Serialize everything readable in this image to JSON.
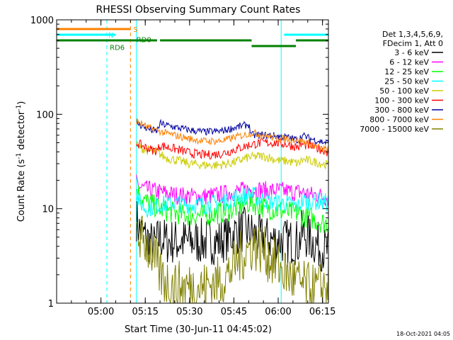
{
  "chart_data": {
    "type": "line",
    "title": "RHESSI Observing Summary Count Rates",
    "xlabel": "Start Time (30-Jun-11 04:45:02)",
    "ylabel_main": "Count Rate (s",
    "ylabel_sup1": "-1",
    "ylabel_mid": " detector",
    "ylabel_sup2": "-1",
    "ylabel_end": ")",
    "yscale": "log",
    "ylim": [
      1,
      1000
    ],
    "xlim_min": [
      0,
      92
    ],
    "y_ticks": [
      {
        "value": 1,
        "label": "1"
      },
      {
        "value": 10,
        "label": "10"
      },
      {
        "value": 100,
        "label": "100"
      },
      {
        "value": 1000,
        "label": "1000"
      }
    ],
    "x_ticks": [
      {
        "value": 15,
        "label": "05:00"
      },
      {
        "value": 30,
        "label": "05:15"
      },
      {
        "value": 45,
        "label": "05:30"
      },
      {
        "value": 60,
        "label": "05:45"
      },
      {
        "value": 75,
        "label": "06:00"
      },
      {
        "value": 90,
        "label": "06:15"
      }
    ],
    "legend_header": [
      "Det 1,3,4,5,6,9,",
      "FDecim 1, Att 0"
    ],
    "series": [
      {
        "name": "3 - 6 keV",
        "color": "#000000",
        "data": [
          [
            27,
            8
          ],
          [
            28,
            6
          ],
          [
            30,
            5
          ],
          [
            33,
            4
          ],
          [
            35,
            5
          ],
          [
            37,
            4.5
          ],
          [
            40,
            4.5
          ],
          [
            45,
            4.5
          ],
          [
            50,
            4.5
          ],
          [
            55,
            4.5
          ],
          [
            58,
            5
          ],
          [
            60,
            5.5
          ],
          [
            63,
            6
          ],
          [
            66,
            5.5
          ],
          [
            68,
            5
          ],
          [
            70,
            4.8
          ],
          [
            72,
            4.7
          ],
          [
            74,
            4.6
          ],
          [
            76,
            4.6
          ],
          [
            78,
            4.5
          ],
          [
            80,
            4.5
          ],
          [
            82,
            4.4
          ],
          [
            83,
            5.5
          ],
          [
            85,
            5
          ],
          [
            88,
            4.2
          ],
          [
            90,
            3.8
          ],
          [
            92,
            3.5
          ]
        ],
        "noise": 0.25
      },
      {
        "name": "6 - 12 keV",
        "color": "#ff00ff",
        "data": [
          [
            27,
            20
          ],
          [
            28,
            17
          ],
          [
            30,
            16
          ],
          [
            35,
            15
          ],
          [
            40,
            14
          ],
          [
            45,
            13.5
          ],
          [
            50,
            13.5
          ],
          [
            55,
            14
          ],
          [
            60,
            15
          ],
          [
            65,
            16
          ],
          [
            66,
            16
          ],
          [
            68,
            16
          ],
          [
            72,
            15.5
          ],
          [
            76,
            15.5
          ],
          [
            80,
            15
          ],
          [
            82,
            15
          ],
          [
            83,
            15
          ],
          [
            86,
            14
          ],
          [
            88,
            14
          ],
          [
            90,
            13.5
          ],
          [
            92,
            13
          ]
        ],
        "noise": 0.1
      },
      {
        "name": "12 - 25 keV",
        "color": "#00ff00",
        "data": [
          [
            27,
            17
          ],
          [
            28,
            14
          ],
          [
            30,
            12
          ],
          [
            35,
            10
          ],
          [
            40,
            9
          ],
          [
            45,
            8.5
          ],
          [
            50,
            8.5
          ],
          [
            55,
            9
          ],
          [
            60,
            10
          ],
          [
            65,
            11.5
          ],
          [
            66,
            11.5
          ],
          [
            68,
            11
          ],
          [
            72,
            10
          ],
          [
            76,
            9.5
          ],
          [
            80,
            9
          ],
          [
            82,
            9
          ],
          [
            83,
            8.5
          ],
          [
            86,
            8
          ],
          [
            88,
            7.5
          ],
          [
            90,
            7.2
          ],
          [
            92,
            7
          ]
        ],
        "noise": 0.12
      },
      {
        "name": "25 - 50 keV",
        "color": "#00ffff",
        "data": [
          [
            27,
            15
          ],
          [
            28,
            12
          ],
          [
            30,
            10
          ],
          [
            35,
            11
          ],
          [
            40,
            11.5
          ],
          [
            45,
            11
          ],
          [
            50,
            11
          ],
          [
            55,
            11.5
          ],
          [
            60,
            13
          ],
          [
            65,
            14
          ],
          [
            66,
            14
          ],
          [
            68,
            13
          ],
          [
            72,
            12
          ],
          [
            76,
            11.5
          ],
          [
            80,
            11
          ],
          [
            82,
            10.5
          ],
          [
            83,
            12
          ],
          [
            86,
            12
          ],
          [
            88,
            12
          ],
          [
            90,
            11.8
          ],
          [
            92,
            11.5
          ]
        ],
        "noise": 0.1
      },
      {
        "name": "50 - 100 keV",
        "color": "#cccc00",
        "data": [
          [
            27,
            48
          ],
          [
            28,
            45
          ],
          [
            30,
            42
          ],
          [
            34,
            40
          ],
          [
            36,
            36
          ],
          [
            38,
            34
          ],
          [
            40,
            33
          ],
          [
            45,
            30
          ],
          [
            50,
            29
          ],
          [
            55,
            29
          ],
          [
            58,
            30
          ],
          [
            60,
            31
          ],
          [
            65,
            35
          ],
          [
            66,
            35
          ],
          [
            68,
            36
          ],
          [
            70,
            36
          ],
          [
            72,
            35
          ],
          [
            74,
            33
          ],
          [
            76,
            32
          ],
          [
            78,
            32
          ],
          [
            80,
            31
          ],
          [
            82,
            30
          ],
          [
            83,
            33
          ],
          [
            86,
            32
          ],
          [
            88,
            31
          ],
          [
            90,
            30
          ],
          [
            92,
            29
          ]
        ],
        "noise": 0.05
      },
      {
        "name": "100 - 300 keV",
        "color": "#ff0000",
        "data": [
          [
            27,
            50
          ],
          [
            28,
            48
          ],
          [
            30,
            45
          ],
          [
            32,
            42
          ],
          [
            34,
            41
          ],
          [
            35,
            47
          ],
          [
            36,
            46
          ],
          [
            40,
            43
          ],
          [
            45,
            39
          ],
          [
            50,
            37
          ],
          [
            55,
            38
          ],
          [
            58,
            40
          ],
          [
            60,
            42
          ],
          [
            65,
            47
          ],
          [
            66,
            48
          ],
          [
            68,
            49
          ],
          [
            70,
            50
          ],
          [
            72,
            50
          ],
          [
            74,
            50
          ],
          [
            76,
            49
          ],
          [
            78,
            48
          ],
          [
            80,
            46
          ],
          [
            82,
            45
          ],
          [
            83,
            48
          ],
          [
            86,
            46
          ],
          [
            88,
            44
          ],
          [
            90,
            42
          ],
          [
            92,
            40
          ]
        ],
        "noise": 0.05
      },
      {
        "name": "300 - 800 keV",
        "color": "#0000a0",
        "data": [
          [
            27,
            82
          ],
          [
            28,
            78
          ],
          [
            30,
            72
          ],
          [
            32,
            68
          ],
          [
            34,
            66
          ],
          [
            35,
            80
          ],
          [
            36,
            78
          ],
          [
            40,
            73
          ],
          [
            45,
            68
          ],
          [
            50,
            65
          ],
          [
            55,
            66
          ],
          [
            58,
            69
          ],
          [
            60,
            72
          ],
          [
            65,
            78
          ],
          [
            66,
            60
          ],
          [
            68,
            60
          ],
          [
            70,
            60
          ],
          [
            72,
            60
          ],
          [
            74,
            59
          ],
          [
            76,
            58
          ],
          [
            78,
            57
          ],
          [
            80,
            55
          ],
          [
            82,
            53
          ],
          [
            83,
            60
          ],
          [
            86,
            55
          ],
          [
            88,
            53
          ],
          [
            90,
            51
          ],
          [
            92,
            50
          ]
        ],
        "noise": 0.04
      },
      {
        "name": "800 - 7000 keV",
        "color": "#ff8000",
        "data": [
          [
            27,
            85
          ],
          [
            28,
            82
          ],
          [
            30,
            75
          ],
          [
            32,
            70
          ],
          [
            34,
            68
          ],
          [
            35,
            66
          ],
          [
            36,
            64
          ],
          [
            40,
            60
          ],
          [
            45,
            55
          ],
          [
            50,
            52
          ],
          [
            55,
            52
          ],
          [
            58,
            54
          ],
          [
            60,
            57
          ],
          [
            65,
            62
          ],
          [
            66,
            64
          ],
          [
            68,
            62
          ],
          [
            70,
            60
          ],
          [
            72,
            58
          ],
          [
            74,
            56
          ],
          [
            76,
            55
          ],
          [
            78,
            55
          ],
          [
            80,
            54
          ],
          [
            82,
            53
          ],
          [
            83,
            52
          ],
          [
            86,
            48
          ],
          [
            88,
            45
          ],
          [
            90,
            43
          ],
          [
            92,
            42
          ]
        ],
        "noise": 0.04
      },
      {
        "name": "7000 - 15000 keV",
        "color": "#808000",
        "data": [
          [
            27,
            6
          ],
          [
            28,
            5
          ],
          [
            30,
            4.5
          ],
          [
            32,
            3.5
          ],
          [
            34,
            2.5
          ],
          [
            35,
            2
          ],
          [
            37,
            1.7
          ],
          [
            40,
            1.5
          ],
          [
            45,
            1.5
          ],
          [
            50,
            1.5
          ],
          [
            55,
            1.7
          ],
          [
            58,
            2
          ],
          [
            60,
            2.5
          ],
          [
            62,
            3
          ],
          [
            64,
            3.5
          ],
          [
            66,
            4
          ],
          [
            68,
            4
          ],
          [
            70,
            3.6
          ],
          [
            72,
            3
          ],
          [
            74,
            2.6
          ],
          [
            76,
            2.3
          ],
          [
            78,
            2
          ],
          [
            80,
            1.8
          ],
          [
            82,
            1.6
          ],
          [
            84,
            1.5
          ],
          [
            86,
            1.4
          ],
          [
            88,
            1.4
          ],
          [
            90,
            1.5
          ],
          [
            92,
            1.6
          ]
        ],
        "noise": 0.28
      }
    ],
    "flag_bars": [
      {
        "label": "S",
        "color": "#ff8000",
        "row": 0,
        "x0": 0,
        "x1": 25
      },
      {
        "label": "N",
        "color": "#00ffff",
        "row": 1,
        "x0": 0,
        "x1": 20
      },
      {
        "label": "N",
        "color": "#00ffff",
        "row": 1,
        "x0": 77,
        "x1": 92
      },
      {
        "label": "RD0",
        "color": "#008000",
        "row": 2,
        "x0": 25,
        "x1": 34
      },
      {
        "label": "RD6",
        "color": "#008000",
        "row": 2,
        "x0": 0,
        "x1": 25
      },
      {
        "label": "RD6",
        "color": "#008000",
        "row": 2,
        "x0": 35,
        "x1": 66
      },
      {
        "label": "RD6",
        "color": "#008000",
        "row": 3,
        "x0": 66,
        "x1": 81
      },
      {
        "label": "RD6",
        "color": "#008000",
        "row": 2,
        "x0": 81,
        "x1": 92
      }
    ],
    "flag_labels": [
      {
        "text": "S",
        "color": "#ff8000",
        "x": 26,
        "row": 0
      },
      {
        "text": "N",
        "color": "#00ffff",
        "x": 17.5,
        "row": 1
      },
      {
        "text": "RD0",
        "color": "#008000",
        "x": 27,
        "row": 1.8
      },
      {
        "text": "RD6",
        "color": "#008000",
        "x": 18,
        "row": 3.2
      }
    ],
    "vlines": [
      {
        "x": 0,
        "color": "#00ffff",
        "dash": false
      },
      {
        "x": 17,
        "color": "#00ffff",
        "dash": true
      },
      {
        "x": 25,
        "color": "#ff8000",
        "dash": true
      },
      {
        "x": 27,
        "color": "#00ffff",
        "dash": false
      },
      {
        "x": 76,
        "color": "#00ffff",
        "dash": false
      },
      {
        "x": 92,
        "color": "#00ffff",
        "dash": true
      }
    ],
    "timestamp": "18-Oct-2021 04:05"
  }
}
